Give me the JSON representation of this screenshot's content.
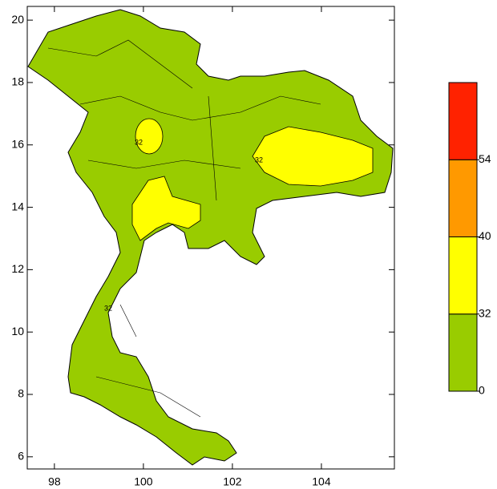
{
  "map": {
    "xlim": [
      97.39,
      105.64
    ],
    "ylim": [
      5.61,
      20.44
    ],
    "xticks": [
      98,
      100,
      102,
      104
    ],
    "yticks": [
      6,
      8,
      10,
      12,
      14,
      16,
      18,
      20
    ],
    "contour_labels": [
      32,
      32,
      32
    ],
    "land_color": "#99cc00"
  },
  "colorbar": {
    "levels": [
      0,
      32,
      40,
      54
    ],
    "colors": [
      "#99cc00",
      "#ffff00",
      "#ff9900",
      "#ff2200"
    ]
  }
}
